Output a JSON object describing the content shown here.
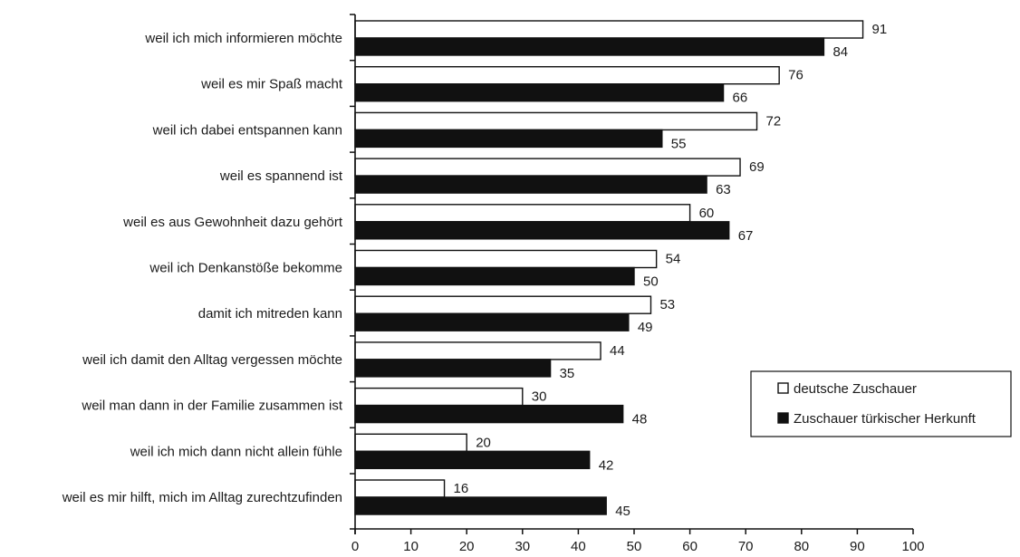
{
  "chart_data": {
    "type": "bar",
    "orientation": "horizontal",
    "categories": [
      "weil ich mich informieren möchte",
      "weil es mir Spaß macht",
      "weil ich dabei entspannen kann",
      "weil es spannend ist",
      "weil es aus Gewohnheit dazu gehört",
      "weil ich Denkanstöße bekomme",
      "damit ich mitreden kann",
      "weil ich damit den Alltag vergessen möchte",
      "weil man dann in der Familie zusammen ist",
      "weil ich mich dann nicht allein fühle",
      "weil es mir hilft, mich im Alltag zurechtzufinden"
    ],
    "series": [
      {
        "name": "deutsche Zuschauer",
        "color": "#ffffff",
        "values": [
          91,
          76,
          72,
          69,
          60,
          54,
          53,
          44,
          30,
          20,
          16
        ]
      },
      {
        "name": "Zuschauer türkischer Herkunft",
        "color": "#111111",
        "values": [
          84,
          66,
          55,
          63,
          67,
          50,
          49,
          35,
          48,
          42,
          45
        ]
      }
    ],
    "xlim": [
      0,
      100
    ],
    "xticks": [
      "0",
      "10",
      "20",
      "30",
      "40",
      "50",
      "60",
      "70",
      "80",
      "90",
      "100"
    ],
    "title": "",
    "xlabel": "",
    "ylabel": "",
    "grid": false,
    "legend_position": "right"
  }
}
